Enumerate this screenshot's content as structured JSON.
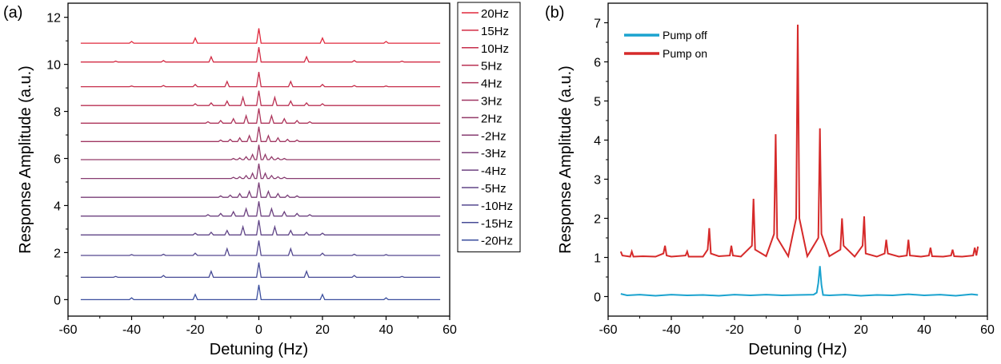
{
  "chart_data": [
    {
      "panel_label": "(a)",
      "type": "line",
      "xlabel": "Detuning (Hz)",
      "ylabel": "Response Amplitude (a.u.)",
      "xlim": [
        -60,
        60
      ],
      "ylim": [
        -0.7,
        12.6
      ],
      "xticks": [
        -60,
        -40,
        -20,
        0,
        20,
        40,
        60
      ],
      "yticks": [
        0,
        2,
        4,
        6,
        8,
        10,
        12
      ],
      "x_range": [
        -56,
        57
      ],
      "legend_position": "right",
      "color_start": "#3a4e9e",
      "color_end": "#e0283c",
      "series": [
        {
          "name": "20Hz",
          "offset": 10.9,
          "spacing": 20,
          "peaks": [
            1.0,
            0.35,
            0.12
          ]
        },
        {
          "name": "15Hz",
          "offset": 10.1,
          "spacing": 15,
          "peaks": [
            1.0,
            0.35,
            0.1,
            0.06
          ]
        },
        {
          "name": "10Hz",
          "offset": 9.05,
          "spacing": 10,
          "peaks": [
            1.0,
            0.35,
            0.15,
            0.08,
            0.05
          ]
        },
        {
          "name": "5Hz",
          "offset": 8.25,
          "spacing": 5,
          "peaks": [
            1.0,
            0.55,
            0.3,
            0.18,
            0.12
          ]
        },
        {
          "name": "4Hz",
          "offset": 7.5,
          "spacing": 4,
          "peaks": [
            1.0,
            0.5,
            0.3,
            0.18,
            0.1
          ]
        },
        {
          "name": "3Hz",
          "offset": 6.72,
          "spacing": 3,
          "peaks": [
            1.0,
            0.4,
            0.25,
            0.15,
            0.1
          ]
        },
        {
          "name": "2Hz",
          "offset": 5.95,
          "spacing": 2,
          "peaks": [
            1.0,
            0.35,
            0.2,
            0.12,
            0.08
          ]
        },
        {
          "name": "-2Hz",
          "offset": 5.15,
          "spacing": 2,
          "peaks": [
            1.0,
            0.35,
            0.2,
            0.12,
            0.08
          ]
        },
        {
          "name": "-3Hz",
          "offset": 4.35,
          "spacing": 3,
          "peaks": [
            1.0,
            0.4,
            0.25,
            0.15,
            0.1
          ]
        },
        {
          "name": "-4Hz",
          "offset": 3.55,
          "spacing": 4,
          "peaks": [
            1.0,
            0.5,
            0.3,
            0.18,
            0.1
          ]
        },
        {
          "name": "-5Hz",
          "offset": 2.75,
          "spacing": 5,
          "peaks": [
            1.0,
            0.55,
            0.3,
            0.18,
            0.12
          ]
        },
        {
          "name": "-10Hz",
          "offset": 1.88,
          "spacing": 10,
          "peaks": [
            1.0,
            0.45,
            0.15,
            0.08,
            0.05
          ]
        },
        {
          "name": "-15Hz",
          "offset": 0.95,
          "spacing": 15,
          "peaks": [
            1.0,
            0.4,
            0.12,
            0.06
          ]
        },
        {
          "name": "-20Hz",
          "offset": 0.0,
          "spacing": 20,
          "peaks": [
            1.0,
            0.35,
            0.12
          ]
        }
      ]
    },
    {
      "panel_label": "(b)",
      "type": "line",
      "xlabel": "Detuning (Hz)",
      "ylabel": "Response Amplitude (a.u.)",
      "xlim": [
        -60,
        60
      ],
      "ylim": [
        -0.5,
        7.5
      ],
      "xticks": [
        -60,
        -40,
        -20,
        0,
        20,
        40,
        60
      ],
      "yticks": [
        0,
        1,
        2,
        3,
        4,
        5,
        6,
        7
      ],
      "legend_position": "top-left",
      "series": [
        {
          "name": "Pump off",
          "color": "#1ba3cf",
          "x": [
            -56,
            -54,
            -50,
            -45,
            -40,
            -35,
            -30,
            -25,
            -20,
            -15,
            -10,
            -5,
            0,
            5,
            6,
            6.5,
            7,
            7.5,
            8,
            10,
            15,
            20,
            25,
            30,
            35,
            40,
            45,
            50,
            55,
            57
          ],
          "y": [
            0.07,
            0.03,
            0.05,
            0.02,
            0.05,
            0.03,
            0.04,
            0.02,
            0.05,
            0.03,
            0.05,
            0.03,
            0.04,
            0.05,
            0.1,
            0.35,
            0.78,
            0.3,
            0.04,
            0.03,
            0.05,
            0.02,
            0.04,
            0.03,
            0.06,
            0.03,
            0.05,
            0.02,
            0.06,
            0.04
          ]
        },
        {
          "name": "Pump on",
          "color": "#d62a2a",
          "x": [
            -56,
            -55.5,
            -53,
            -52.5,
            -52,
            -49,
            -45,
            -42.5,
            -42,
            -41.5,
            -40,
            -35.5,
            -35,
            -34.5,
            -30,
            -28.5,
            -28,
            -27.5,
            -25,
            -21.5,
            -21,
            -20.5,
            -18,
            -14.5,
            -14,
            -13.5,
            -10,
            -7.5,
            -7,
            -6.5,
            -3,
            -0.5,
            0,
            0.5,
            3,
            6.5,
            7,
            7.5,
            10,
            13.5,
            14,
            14.5,
            18,
            20.5,
            21,
            21.5,
            25,
            27.5,
            28,
            28.5,
            32,
            34.5,
            35,
            35.5,
            39,
            41.5,
            42,
            42.5,
            46,
            48.5,
            49,
            49.5,
            52,
            55.5,
            56,
            56.5,
            57
          ],
          "y": [
            1.15,
            1.05,
            1.02,
            1.15,
            1.02,
            1.03,
            1.02,
            1.1,
            1.3,
            1.05,
            1.02,
            1.05,
            1.15,
            1.02,
            1.02,
            1.2,
            1.75,
            1.1,
            1.03,
            1.05,
            1.3,
            1.05,
            1.02,
            1.3,
            2.5,
            1.2,
            1.03,
            1.6,
            4.15,
            1.5,
            1.03,
            2.0,
            6.95,
            2.0,
            1.03,
            1.5,
            4.3,
            1.6,
            1.03,
            1.2,
            2.0,
            1.3,
            1.02,
            1.3,
            2.05,
            1.1,
            1.02,
            1.1,
            1.45,
            1.1,
            1.02,
            1.05,
            1.45,
            1.05,
            1.02,
            1.05,
            1.25,
            1.03,
            1.02,
            1.05,
            1.2,
            1.03,
            1.02,
            1.05,
            1.25,
            1.05,
            1.28
          ]
        }
      ]
    }
  ]
}
